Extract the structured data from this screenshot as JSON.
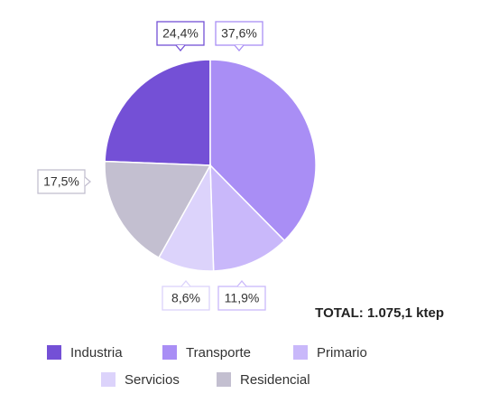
{
  "chart_data": {
    "type": "pie",
    "categories": [
      "Industria",
      "Transporte",
      "Primario",
      "Servicios",
      "Residencial"
    ],
    "values": [
      24.4,
      37.6,
      11.9,
      8.6,
      17.5
    ],
    "value_labels": [
      "24,4%",
      "37,6%",
      "11,9%",
      "8,6%",
      "17,5%"
    ],
    "colors": [
      "#7450d6",
      "#a98ef5",
      "#c9b8fa",
      "#dcd3fb",
      "#c3bfd0"
    ],
    "annotation": "TOTAL: 1.075,1 ktep",
    "legend": "bottom"
  }
}
